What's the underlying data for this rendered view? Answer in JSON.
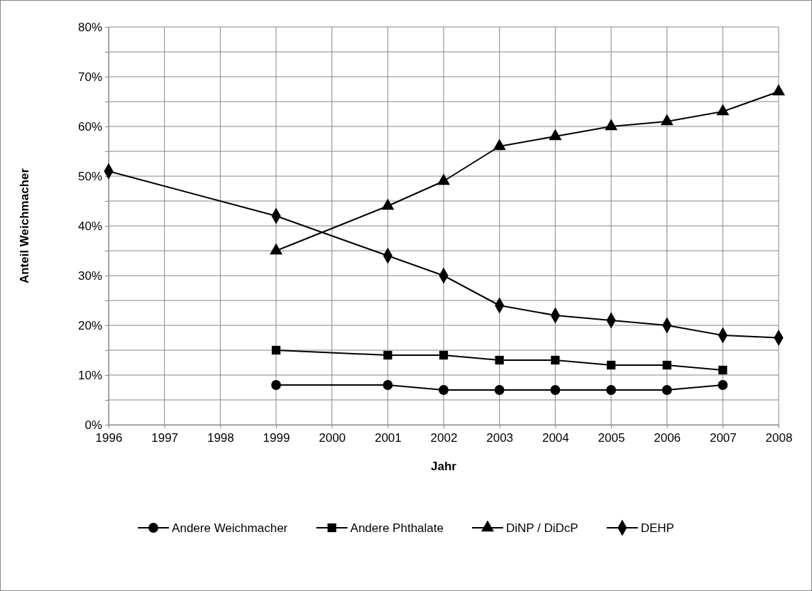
{
  "chart_data": {
    "type": "line",
    "xlabel": "Jahr",
    "ylabel": "Anteil Weichmacher",
    "categories": [
      "1996",
      "1997",
      "1998",
      "1999",
      "2000",
      "2001",
      "2002",
      "2003",
      "2004",
      "2005",
      "2006",
      "2007",
      "2008"
    ],
    "series": [
      {
        "name": "Andere Weichmacher",
        "color": "#000000",
        "marker": "circle",
        "values": [
          null,
          null,
          null,
          8,
          null,
          8,
          7,
          7,
          7,
          7,
          7,
          8,
          null
        ]
      },
      {
        "name": "Andere Phthalate",
        "color": "#000000",
        "marker": "square",
        "values": [
          null,
          null,
          null,
          15,
          null,
          14,
          14,
          13,
          13,
          12,
          12,
          11,
          null
        ]
      },
      {
        "name": "DiNP / DiDcP",
        "color": "#000000",
        "marker": "triangle",
        "values": [
          null,
          null,
          null,
          35,
          null,
          44,
          49,
          56,
          58,
          60,
          61,
          63,
          67
        ]
      },
      {
        "name": "DEHP",
        "color": "#000000",
        "marker": "diamond",
        "values": [
          51,
          null,
          null,
          42,
          null,
          34,
          30,
          24,
          22,
          21,
          20,
          18,
          17.5
        ]
      }
    ],
    "ylim": [
      0,
      80
    ],
    "yticks": [
      {
        "value": 0,
        "label": "0%"
      },
      {
        "value": 5,
        "label": null
      },
      {
        "value": 10,
        "label": "10%"
      },
      {
        "value": 15,
        "label": null
      },
      {
        "value": 20,
        "label": "20%"
      },
      {
        "value": 25,
        "label": null
      },
      {
        "value": 30,
        "label": "30%"
      },
      {
        "value": 35,
        "label": null
      },
      {
        "value": 40,
        "label": "40%"
      },
      {
        "value": 45,
        "label": null
      },
      {
        "value": 50,
        "label": "50%"
      },
      {
        "value": 55,
        "label": null
      },
      {
        "value": 60,
        "label": "60%"
      },
      {
        "value": 65,
        "label": null
      },
      {
        "value": 70,
        "label": "70%"
      },
      {
        "value": 75,
        "label": null
      },
      {
        "value": 80,
        "label": "80%"
      }
    ],
    "grid": true,
    "legend": "bottom",
    "line_style": "solid"
  }
}
